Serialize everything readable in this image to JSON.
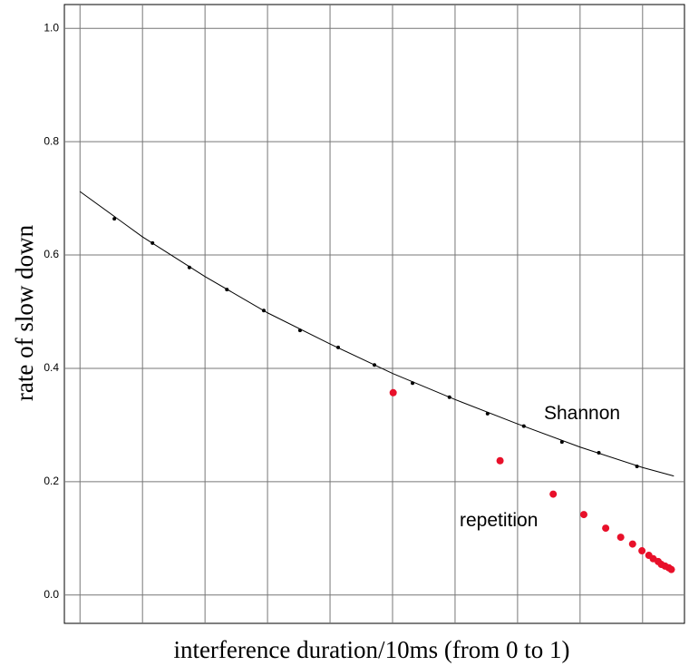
{
  "chart_data": {
    "type": "scatter",
    "xlabel": "interference duration/10ms  (from 0 to 1)",
    "ylabel": "rate of slow down",
    "xlim": [
      -0.025,
      0.967
    ],
    "ylim": [
      -0.05,
      1.042
    ],
    "xticks": [
      0,
      0.1,
      0.2,
      0.3,
      0.4,
      0.5,
      0.6,
      0.7,
      0.8,
      0.9
    ],
    "yticks": [
      {
        "value": 0,
        "label": "0.0"
      },
      0.2,
      0.4,
      0.6,
      0.8,
      {
        "value": 1,
        "label": "1.0"
      }
    ],
    "grid": true,
    "fit": {
      "color": "#000000",
      "x": [
        0,
        0.1,
        0.2,
        0.3,
        0.4,
        0.5,
        0.6,
        0.7,
        0.8,
        0.9,
        0.95
      ],
      "values": [
        0.712,
        0.632,
        0.562,
        0.498,
        0.443,
        0.391,
        0.345,
        0.302,
        0.261,
        0.225,
        0.21
      ]
    },
    "series": [
      {
        "name": "Shannon",
        "color": "#000000",
        "x": [
          0.055,
          0.116,
          0.175,
          0.235,
          0.294,
          0.352,
          0.413,
          0.471,
          0.532,
          0.591,
          0.652,
          0.71,
          0.771,
          0.83,
          0.891
        ],
        "values": [
          0.664,
          0.621,
          0.578,
          0.539,
          0.502,
          0.467,
          0.437,
          0.406,
          0.374,
          0.349,
          0.32,
          0.298,
          0.27,
          0.251,
          0.227
        ]
      },
      {
        "name": "repetition",
        "color": "#e8102a",
        "x": [
          0.501,
          0.672,
          0.757,
          0.806,
          0.841,
          0.865,
          0.884,
          0.899,
          0.91,
          0.917,
          0.925,
          0.93,
          0.936,
          0.942,
          0.946
        ],
        "values": [
          0.357,
          0.237,
          0.178,
          0.142,
          0.118,
          0.102,
          0.09,
          0.078,
          0.07,
          0.064,
          0.059,
          0.054,
          0.051,
          0.048,
          0.045
        ]
      }
    ]
  }
}
